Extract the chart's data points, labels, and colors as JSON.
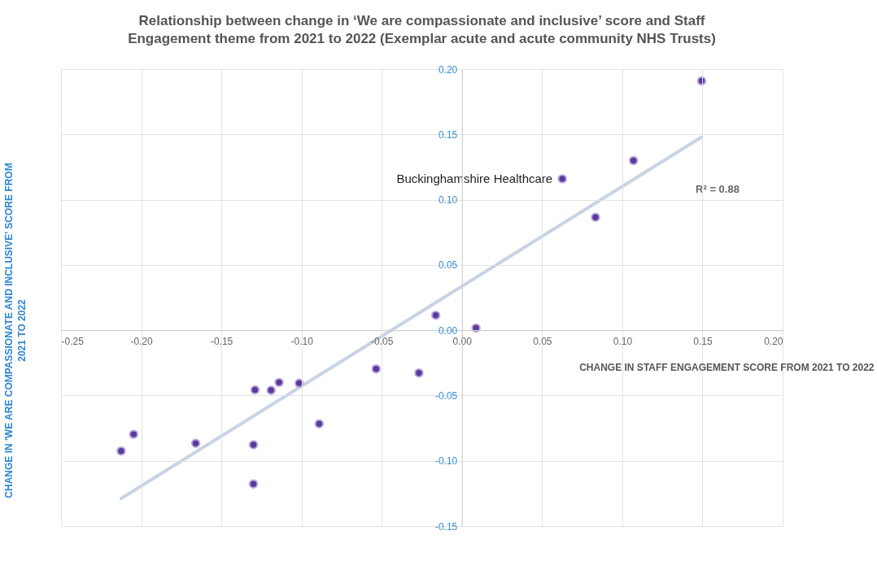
{
  "chart_data": {
    "type": "scatter",
    "title": [
      "Relationship between change in ‘We are compassionate and inclusive’ score and Staff",
      "Engagement theme from 2021 to 2022 (Exemplar acute and acute community NHS Trusts)"
    ],
    "xlabel": "CHANGE IN STAFF ENGAGEMENT SCORE FROM 2021 TO 2022",
    "ylabel": [
      "CHANGE IN 'WE ARE COMPASSIONATE AND INCLUSIVE' SCORE FROM",
      "2021 TO 2022"
    ],
    "xlim": [
      -0.25,
      0.2
    ],
    "xticks": [
      {
        "value": -0.25,
        "label": "-0.25"
      },
      {
        "value": -0.2,
        "label": "-0.20"
      },
      {
        "value": -0.15,
        "label": "-0.15"
      },
      {
        "value": -0.1,
        "label": "-0.10"
      },
      {
        "value": -0.05,
        "label": "-0.05"
      },
      {
        "value": 0,
        "label": "0.00"
      },
      {
        "value": 0.05,
        "label": "0.05"
      },
      {
        "value": 0.1,
        "label": "0.10"
      },
      {
        "value": 0.15,
        "label": "0.15"
      },
      {
        "value": 0.2,
        "label": "0.20"
      }
    ],
    "ylim": [
      -0.15,
      0.2
    ],
    "yticks": [
      {
        "value": -0.15,
        "label": "-0.15"
      },
      {
        "value": -0.1,
        "label": "-0.10"
      },
      {
        "value": -0.05,
        "label": "-0.05"
      },
      {
        "value": 0,
        "label": "0.00"
      },
      {
        "value": 0.05,
        "label": "0.05"
      },
      {
        "value": 0.1,
        "label": "0.10"
      },
      {
        "value": 0.15,
        "label": "0.15"
      },
      {
        "value": 0.2,
        "label": "0.20"
      }
    ],
    "grid": true,
    "series": [
      {
        "marker": "circle",
        "color": "#5b3a9e",
        "x": [
          -0.2125,
          -0.2047,
          -0.166,
          -0.13,
          -0.13,
          -0.129,
          -0.119,
          -0.114,
          -0.1015,
          -0.089,
          -0.0535,
          -0.0268,
          -0.0163,
          0.0088,
          0.0626,
          0.0833,
          0.107,
          0.1495
        ],
        "values": [
          -0.0925,
          -0.0797,
          -0.0866,
          -0.0877,
          -0.1177,
          -0.0457,
          -0.046,
          -0.04,
          -0.0406,
          -0.0717,
          -0.0296,
          -0.0327,
          0.0115,
          0.0017,
          0.116,
          0.0865,
          0.13,
          0.191
        ]
      },
      {
        "type": "line",
        "color": "#c8d3e3",
        "x": [
          -0.2126,
          0.1495
        ],
        "values": [
          -0.129,
          0.148
        ]
      }
    ],
    "annotations": [
      {
        "text": "Buckinghamshire Healthcare",
        "x": 0.0626,
        "y": 0.116
      },
      "R² = 0.88"
    ]
  }
}
